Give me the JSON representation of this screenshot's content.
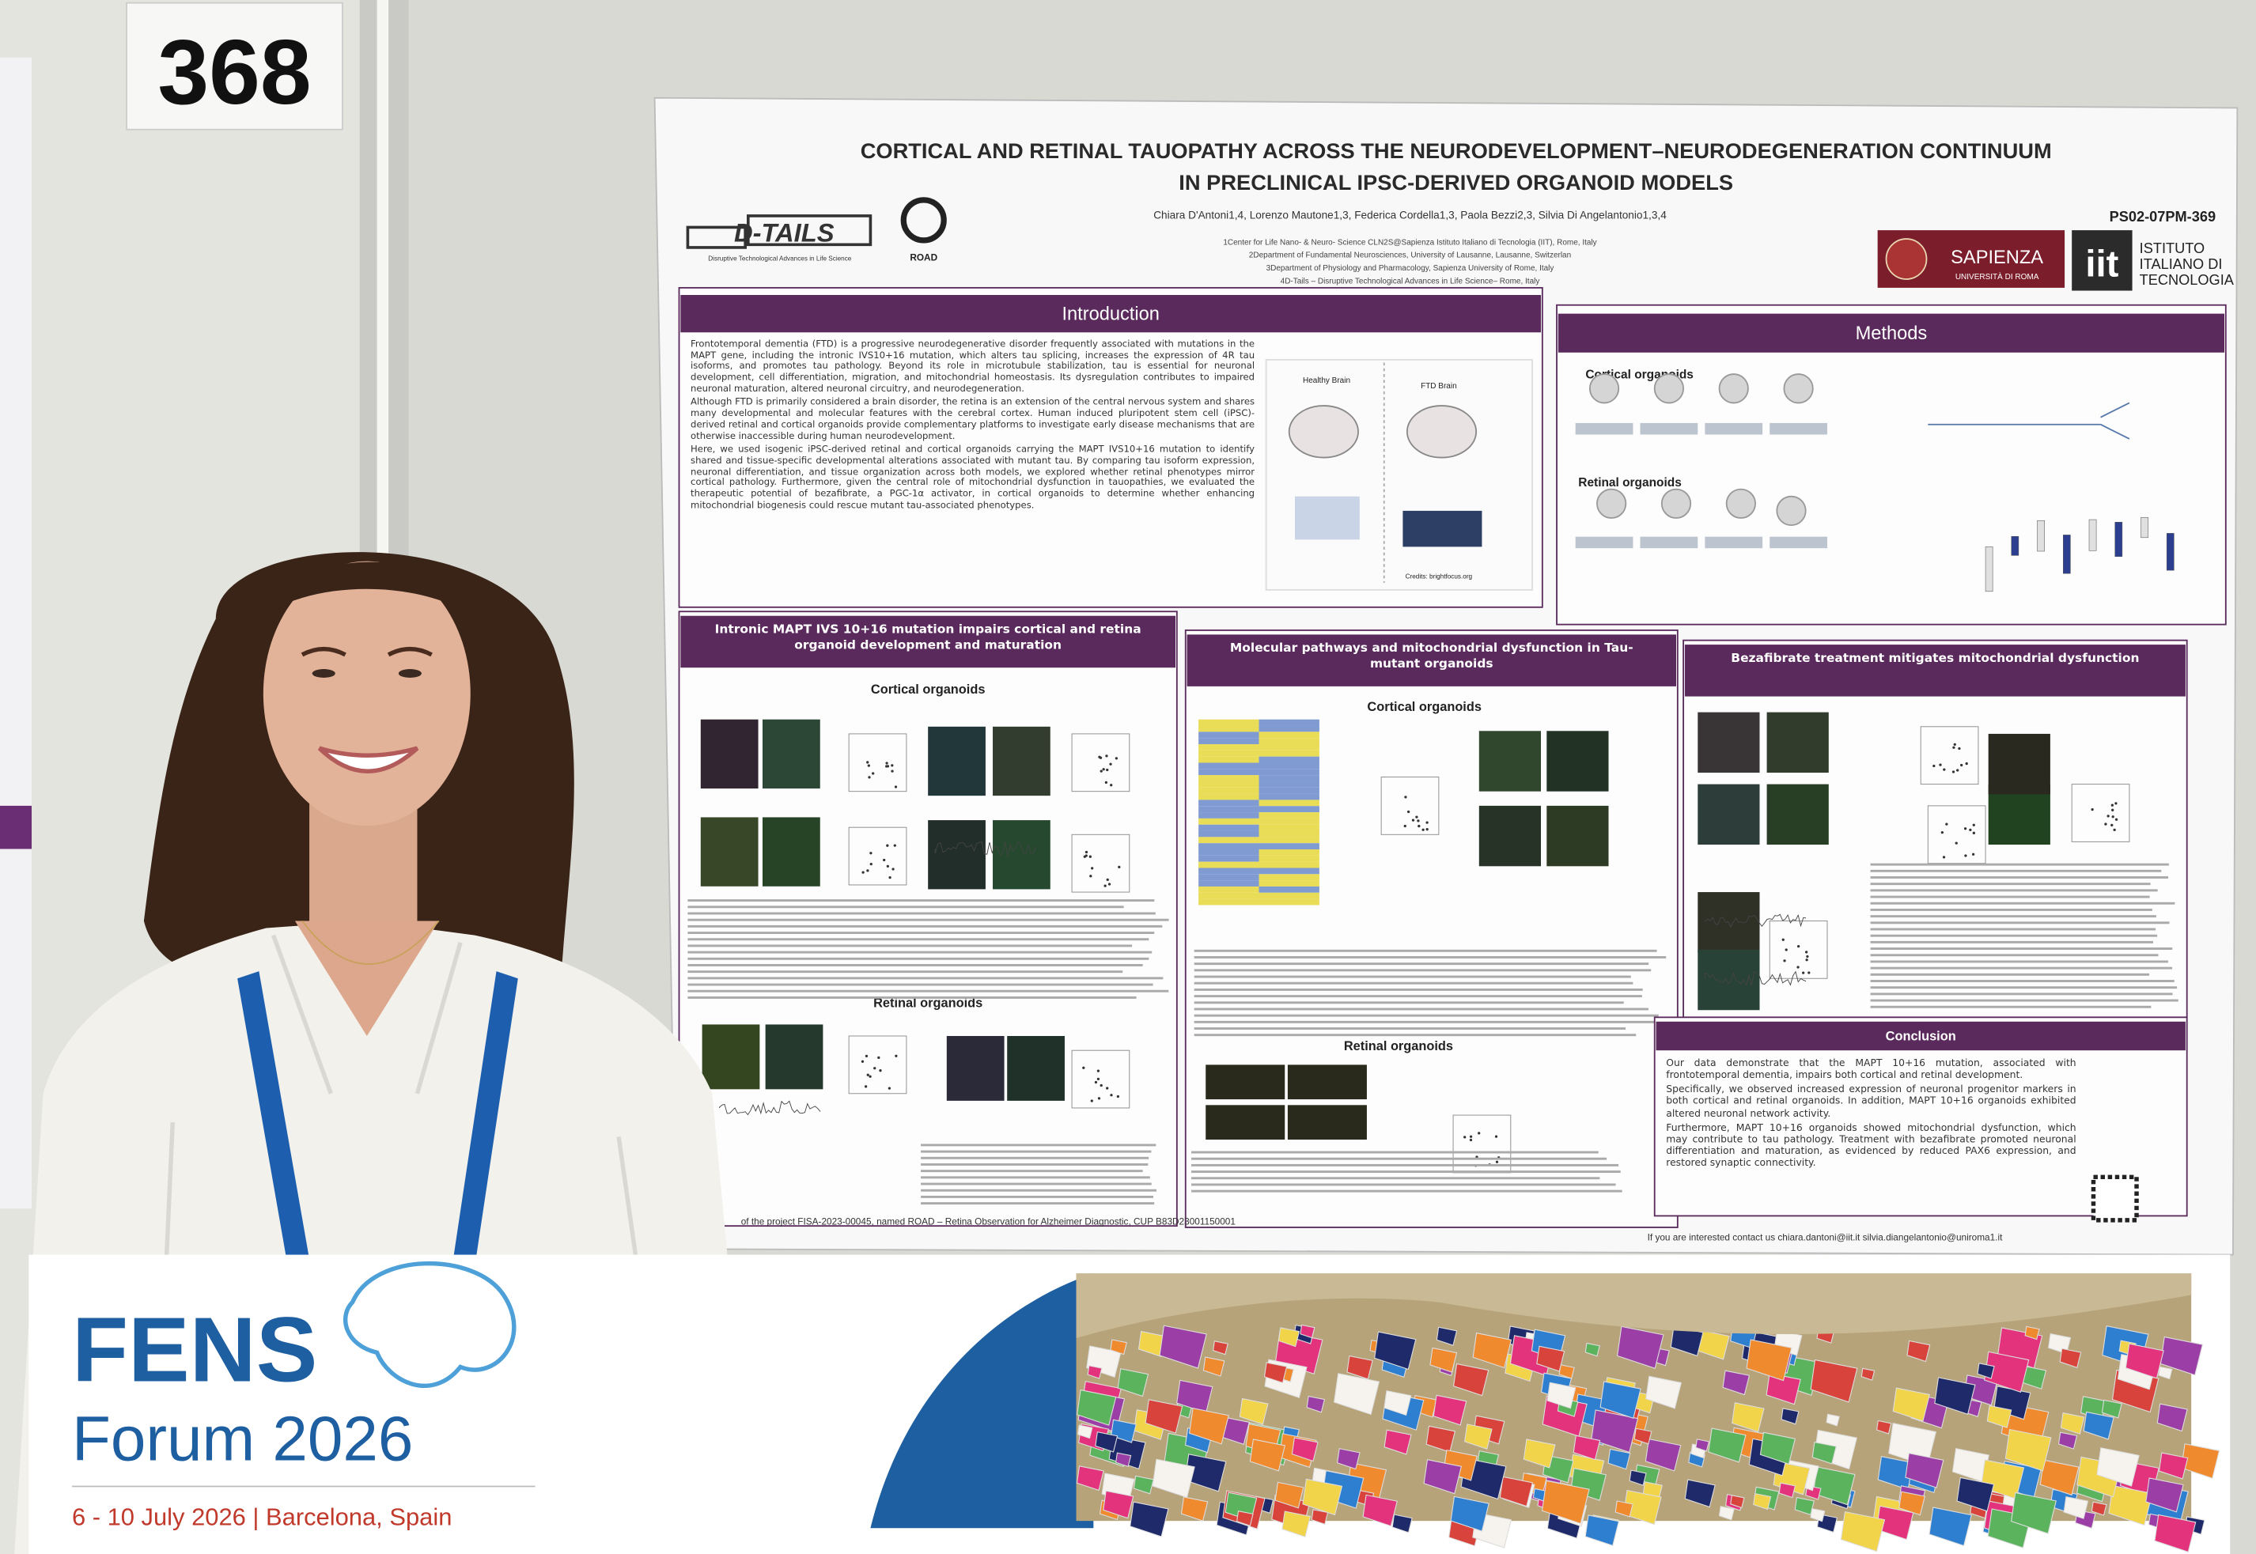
{
  "booth_number": "368",
  "poster": {
    "title": [
      "CORTICAL AND RETINAL TAUOPATHY ACROSS THE NEURODEVELOPMENT–NEURODEGENERATION CONTINUUM",
      "IN PRECLINICAL IPSC-DERIVED ORGANOID MODELS"
    ],
    "code": "PS02-07PM-369",
    "authors": "Chiara D'Antoni1,4, Lorenzo Mautone1,3, Federica Cordella1,3, Paola Bezzi2,3, Silvia Di Angelantonio1,3,4",
    "affiliations": [
      "1Center for Life Nano- & Neuro- Science CLN2S@Sapienza Istituto Italiano di Tecnologia (IIT), Rome, Italy",
      "2Department of Fundamental Neurosciences, University of Lausanne, Lausanne, Switzerlan",
      "3Department of Physiology and Pharmacology, Sapienza University of Rome, Italy",
      "4D-Tails – Disruptive Technological Advances in Life Science– Rome, Italy"
    ],
    "logos": {
      "dtails": "D-TAILS",
      "dtails_tagline": "Disruptive Technological Advances in Life Science",
      "road": "ROAD",
      "sapienza": "SAPIENZA",
      "sapienza_sub": "UNIVERSITÀ DI ROMA",
      "iit": "iit",
      "iit_name": [
        "ISTITUTO",
        "ITALIANO DI",
        "TECNOLOGIA"
      ]
    },
    "introduction": {
      "heading": "Introduction",
      "paragraphs": [
        "Frontotemporal dementia (FTD) is a progressive neurodegenerative disorder frequently associated with mutations in the MAPT gene, including the intronic IVS10+16 mutation, which alters tau splicing, increases the expression of 4R tau isoforms, and promotes tau pathology. Beyond its role in microtubule stabilization, tau is essential for neuronal development, cell differentiation, migration, and mitochondrial homeostasis. Its dysregulation contributes to impaired neuronal maturation, altered neuronal circuitry, and neurodegeneration.",
        "Although FTD is primarily considered a brain disorder, the retina is an extension of the central nervous system and shares many developmental and molecular features with the cerebral cortex. Human induced pluripotent stem cell (iPSC)-derived retinal and cortical organoids provide complementary platforms to investigate early disease mechanisms that are otherwise inaccessible during human neurodevelopment.",
        "Here, we used isogenic iPSC-derived retinal and cortical organoids carrying the MAPT IVS10+16 mutation to identify shared and tissue-specific developmental alterations associated with mutant tau. By comparing tau isoform expression, neuronal differentiation, and tissue organization across both models, we explored whether retinal phenotypes mirror cortical pathology. Furthermore, given the central role of mitochondrial dysfunction in tauopathies, we evaluated the therapeutic potential of bezafibrate, a PGC-1α activator, in cortical organoids to determine whether enhancing mitochondrial biogenesis could rescue mutant tau-associated phenotypes."
      ],
      "figure_labels": [
        "Healthy Brain",
        "FTD Brain",
        "Credits: brightfocus.org"
      ]
    },
    "methods": {
      "heading": "Methods",
      "labels": [
        "Cortical organoids",
        "Retinal organoids"
      ]
    },
    "panels": [
      {
        "heading": "Intronic MAPT IVS 10+16 mutation impairs cortical and retina organoid development and maturation",
        "subheadings": [
          "Cortical organoids",
          "Retinal organoids"
        ]
      },
      {
        "heading": "Molecular pathways and mitochondrial dysfunction in Tau-mutant organoids",
        "subheadings": [
          "Cortical organoids",
          "Retinal organoids"
        ]
      },
      {
        "heading": "Bezafibrate treatment mitigates mitochondrial dysfunction",
        "subheadings": []
      }
    ],
    "conclusion": {
      "heading": "Conclusion",
      "paragraphs": [
        "Our data demonstrate that the MAPT 10+16 mutation, associated with frontotemporal dementia, impairs both cortical and retinal development.",
        "Specifically, we observed increased expression of neuronal progenitor markers in both cortical and retinal organoids. In addition, MAPT 10+16 organoids exhibited altered neuronal network activity.",
        "Furthermore, MAPT 10+16 organoids showed mitochondrial dysfunction, which may contribute to tau pathology. Treatment with bezafibrate promoted neuronal differentiation and maturation, as evidenced by reduced PAX6 expression, and restored synaptic connectivity."
      ]
    },
    "footer": "of the project FISA-2023-00045, named ROAD – Retina Observation for Alzheimer Diagnostic, CUP B83D23001150001",
    "contact": "If you are interested contact us chiara.dantoni@iit.it  silvia.diangelantonio@uniroma1.it"
  },
  "banner": {
    "brand": "FENS",
    "event": "Forum 2026",
    "dates": "6 - 10 July 2026 | Barcelona, Spain"
  }
}
